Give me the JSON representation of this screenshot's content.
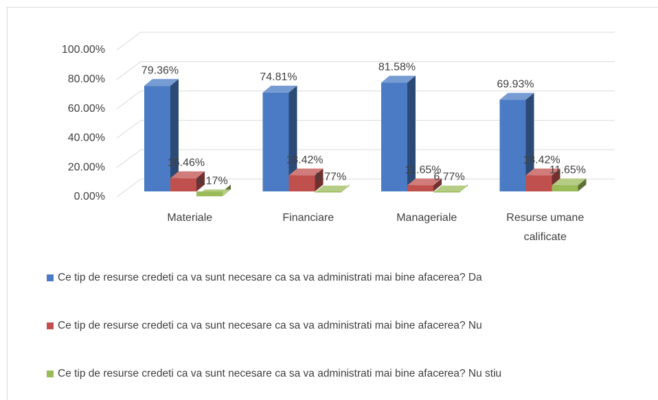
{
  "chart_data": {
    "type": "bar3d",
    "categories": [
      "Materiale",
      "Financiare",
      "Manageriale",
      "Resurse umane calificate"
    ],
    "series": [
      {
        "name": "Ce tip de resurse credeti ca va sunt necesare ca sa va administrati mai bine afacerea? Da",
        "color": "#4a7bc4",
        "values": [
          79.36,
          74.81,
          81.58,
          69.93
        ],
        "value_labels": [
          "79.36%",
          "74.81%",
          "81.58%",
          "69.93%"
        ]
      },
      {
        "name": "Ce tip de resurse credeti ca va sunt necesare ca sa va administrati mai bine afacerea? Nu",
        "color": "#c0504d",
        "values": [
          16.46,
          18.42,
          11.65,
          18.42
        ],
        "value_labels": [
          "16.46%",
          "18.42%",
          "11.65%",
          "18.42%"
        ]
      },
      {
        "name": "Ce tip de resurse credeti ca va sunt necesare ca sa va administrati mai bine afacerea? Nu stiu",
        "color": "#9bbb59",
        "values": [
          4.17,
          6.77,
          6.77,
          11.65
        ],
        "value_labels": [
          "4.17%",
          "6.77%",
          "6.77%",
          "11.65%"
        ]
      }
    ],
    "ylim": [
      0,
      100
    ],
    "yticks": [
      {
        "value": 0,
        "label": "0.00%"
      },
      {
        "value": 20,
        "label": "20.00%"
      },
      {
        "value": 40,
        "label": "40.00%"
      },
      {
        "value": 60,
        "label": "60.00%"
      },
      {
        "value": 80,
        "label": "80.00%"
      },
      {
        "value": 100,
        "label": "100.00%"
      }
    ],
    "grid": true
  }
}
